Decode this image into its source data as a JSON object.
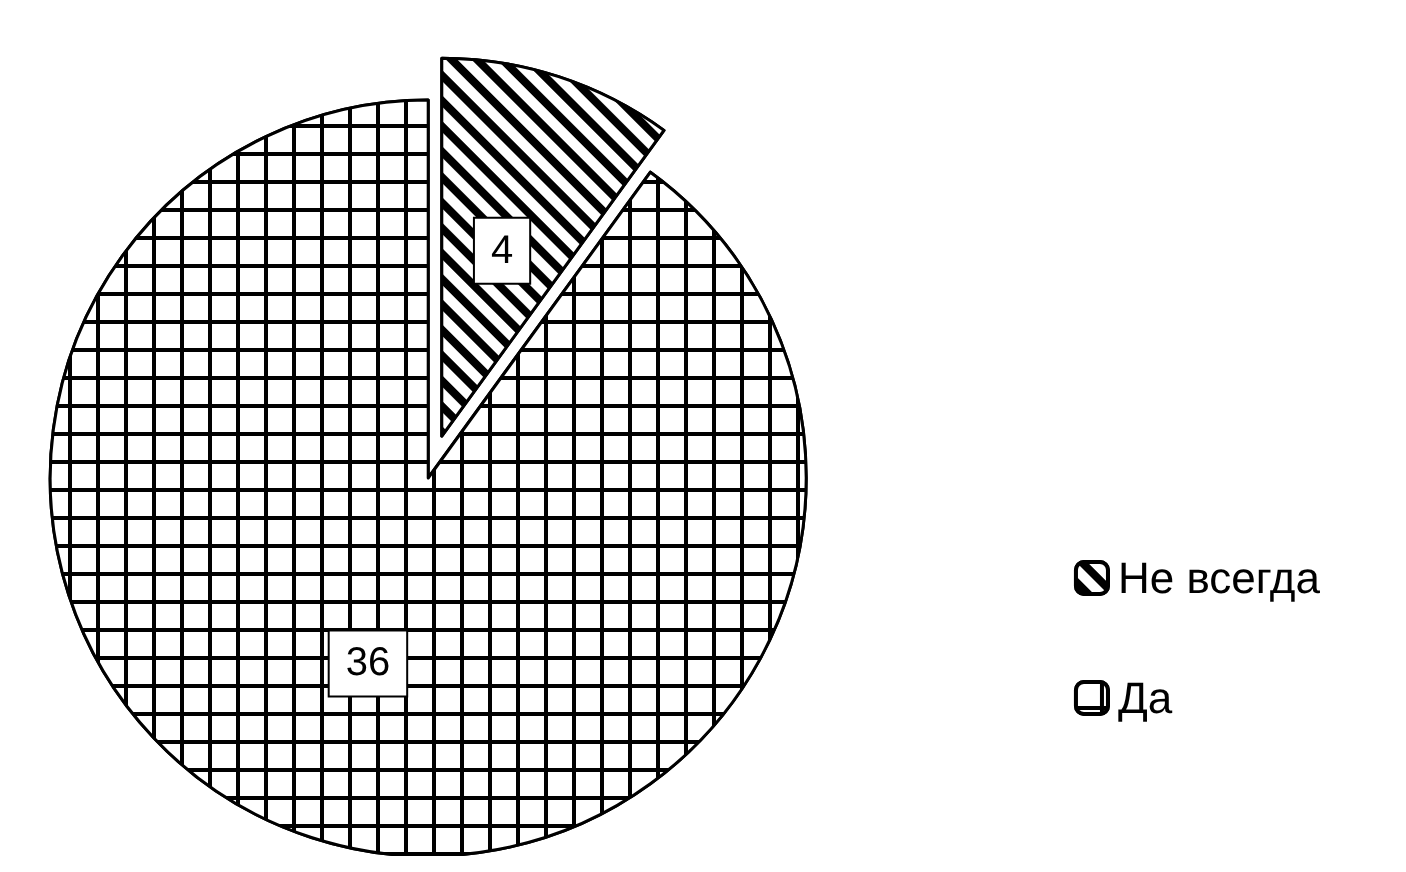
{
  "chart_data": {
    "type": "pie",
    "categories": [
      "Не всегда",
      "Да"
    ],
    "values": [
      4,
      36
    ],
    "colors": [
      "#000000",
      "#000000"
    ],
    "data_labels": true,
    "legend": "right"
  }
}
